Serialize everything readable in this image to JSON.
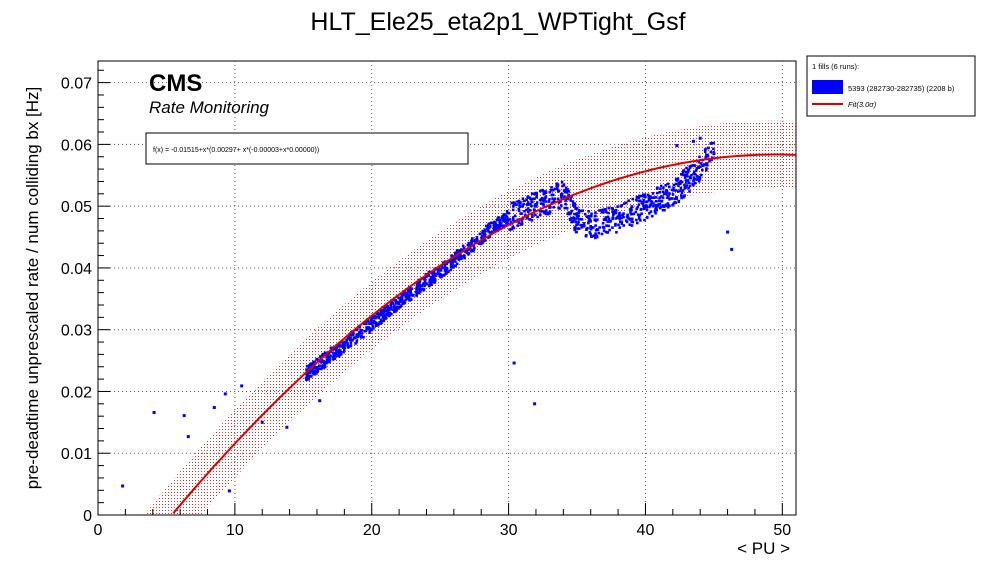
{
  "chart_data": {
    "type": "scatter",
    "title": "HLT_Ele25_eta2p1_WPTight_Gsf",
    "xlabel": "< PU >",
    "ylabel": "pre-deadtime unprescaled rate / num colliding bx [Hz]",
    "xlim": [
      0,
      51
    ],
    "ylim": [
      0,
      0.0735
    ],
    "xticks": [
      0,
      10,
      20,
      30,
      40,
      50
    ],
    "yticks": [
      0,
      0.01,
      0.02,
      0.03,
      0.04,
      0.05,
      0.06,
      0.07
    ],
    "xtick_labels": [
      "0",
      "10",
      "20",
      "30",
      "40",
      "50"
    ],
    "ytick_labels": [
      "0",
      "0.01",
      "0.02",
      "0.03",
      "0.04",
      "0.05",
      "0.06",
      "0.07"
    ],
    "grid": true,
    "cms_label": "CMS",
    "cms_sublabel": "Rate Monitoring",
    "fit_formula": "f(x) = -0.01515+x*(0.00297+ x*(-0.00003+x*0.00000))",
    "fit": {
      "coefficients": [
        -0.01515,
        0.00297,
        -3e-05,
        0.0
      ],
      "band_sigma": 3.0,
      "band_halfwidth": 0.0055,
      "x_range": [
        3.5,
        51
      ],
      "color": "#dd0000"
    },
    "legend": {
      "header": "1 fills (6 runs):",
      "entries": [
        {
          "label": "5393 (282730-282735) (2208 b)",
          "color": "#0000ff",
          "kind": "box"
        },
        {
          "label": "Fit(3.0σ)",
          "color": "#dd0000",
          "kind": "line"
        }
      ]
    },
    "series": [
      {
        "name": "5393 (282730-282735) (2208 b)",
        "color": "#0000ff",
        "trend": [
          [
            15.2,
            0.0228
          ],
          [
            17,
            0.0258
          ],
          [
            19,
            0.0292
          ],
          [
            21,
            0.0328
          ],
          [
            23,
            0.0362
          ],
          [
            25,
            0.0395
          ],
          [
            27,
            0.043
          ],
          [
            29,
            0.047
          ],
          [
            31,
            0.0492
          ],
          [
            33,
            0.051
          ],
          [
            34,
            0.052
          ],
          [
            35,
            0.0475
          ],
          [
            36.5,
            0.047
          ],
          [
            38,
            0.048
          ],
          [
            40,
            0.05
          ],
          [
            42,
            0.052
          ],
          [
            44,
            0.056
          ],
          [
            45,
            0.059
          ]
        ],
        "outliers": [
          [
            1.8,
            0.0047
          ],
          [
            4.1,
            0.0166
          ],
          [
            6.3,
            0.0161
          ],
          [
            6.6,
            0.0127
          ],
          [
            8.5,
            0.0174
          ],
          [
            9.3,
            0.0196
          ],
          [
            9.6,
            0.0039
          ],
          [
            10.5,
            0.0209
          ],
          [
            12.0,
            0.015
          ],
          [
            13.8,
            0.0142
          ],
          [
            16.2,
            0.0185
          ],
          [
            30.4,
            0.0246
          ],
          [
            31.9,
            0.018
          ],
          [
            42.3,
            0.0598
          ],
          [
            43.5,
            0.0605
          ],
          [
            44.0,
            0.061
          ],
          [
            45.0,
            0.0585
          ],
          [
            46.0,
            0.0458
          ],
          [
            46.3,
            0.043
          ]
        ]
      }
    ]
  }
}
